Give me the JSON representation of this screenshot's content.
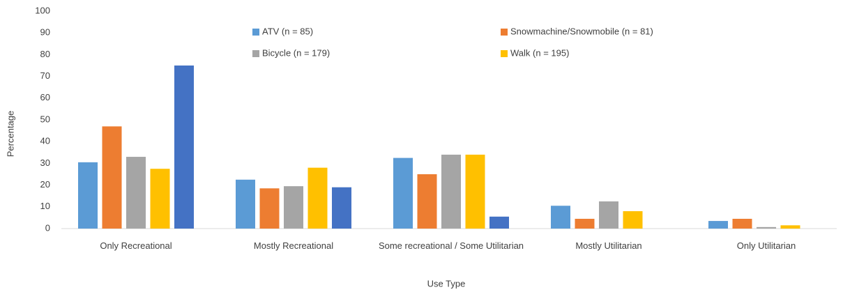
{
  "chart_data": {
    "type": "bar",
    "x_label": "Use Type",
    "y_label": "Percentage",
    "categories": [
      "Only Recreational",
      "Mostly Recreational",
      "Some recreational / Some Utilitarian",
      "Mostly Utilitarian",
      "Only Utilitarian"
    ],
    "series": [
      {
        "name": "ATV (n = 85)",
        "color": "#5b9bd5",
        "values": [
          30.5,
          22.5,
          32.5,
          10.5,
          3.5
        ]
      },
      {
        "name": "Snowmachine/Snowmobile (n = 81)",
        "color": "#ed7d31",
        "values": [
          47,
          18.5,
          25,
          4.5,
          4.5
        ]
      },
      {
        "name": "Bicycle (n = 179)",
        "color": "#a5a5a5",
        "values": [
          33,
          19.5,
          34,
          12.5,
          0.7
        ]
      },
      {
        "name": "Walk (n = 195)",
        "color": "#ffc000",
        "values": [
          27.5,
          28,
          34,
          8,
          1.5
        ]
      },
      {
        "color": "#4472c4",
        "values": [
          75,
          19,
          5.5,
          0,
          0
        ]
      }
    ],
    "ylim": [
      0,
      100
    ],
    "yticks": [
      0,
      10,
      20,
      30,
      40,
      50,
      60,
      70,
      80,
      90,
      100
    ],
    "grid": false
  }
}
